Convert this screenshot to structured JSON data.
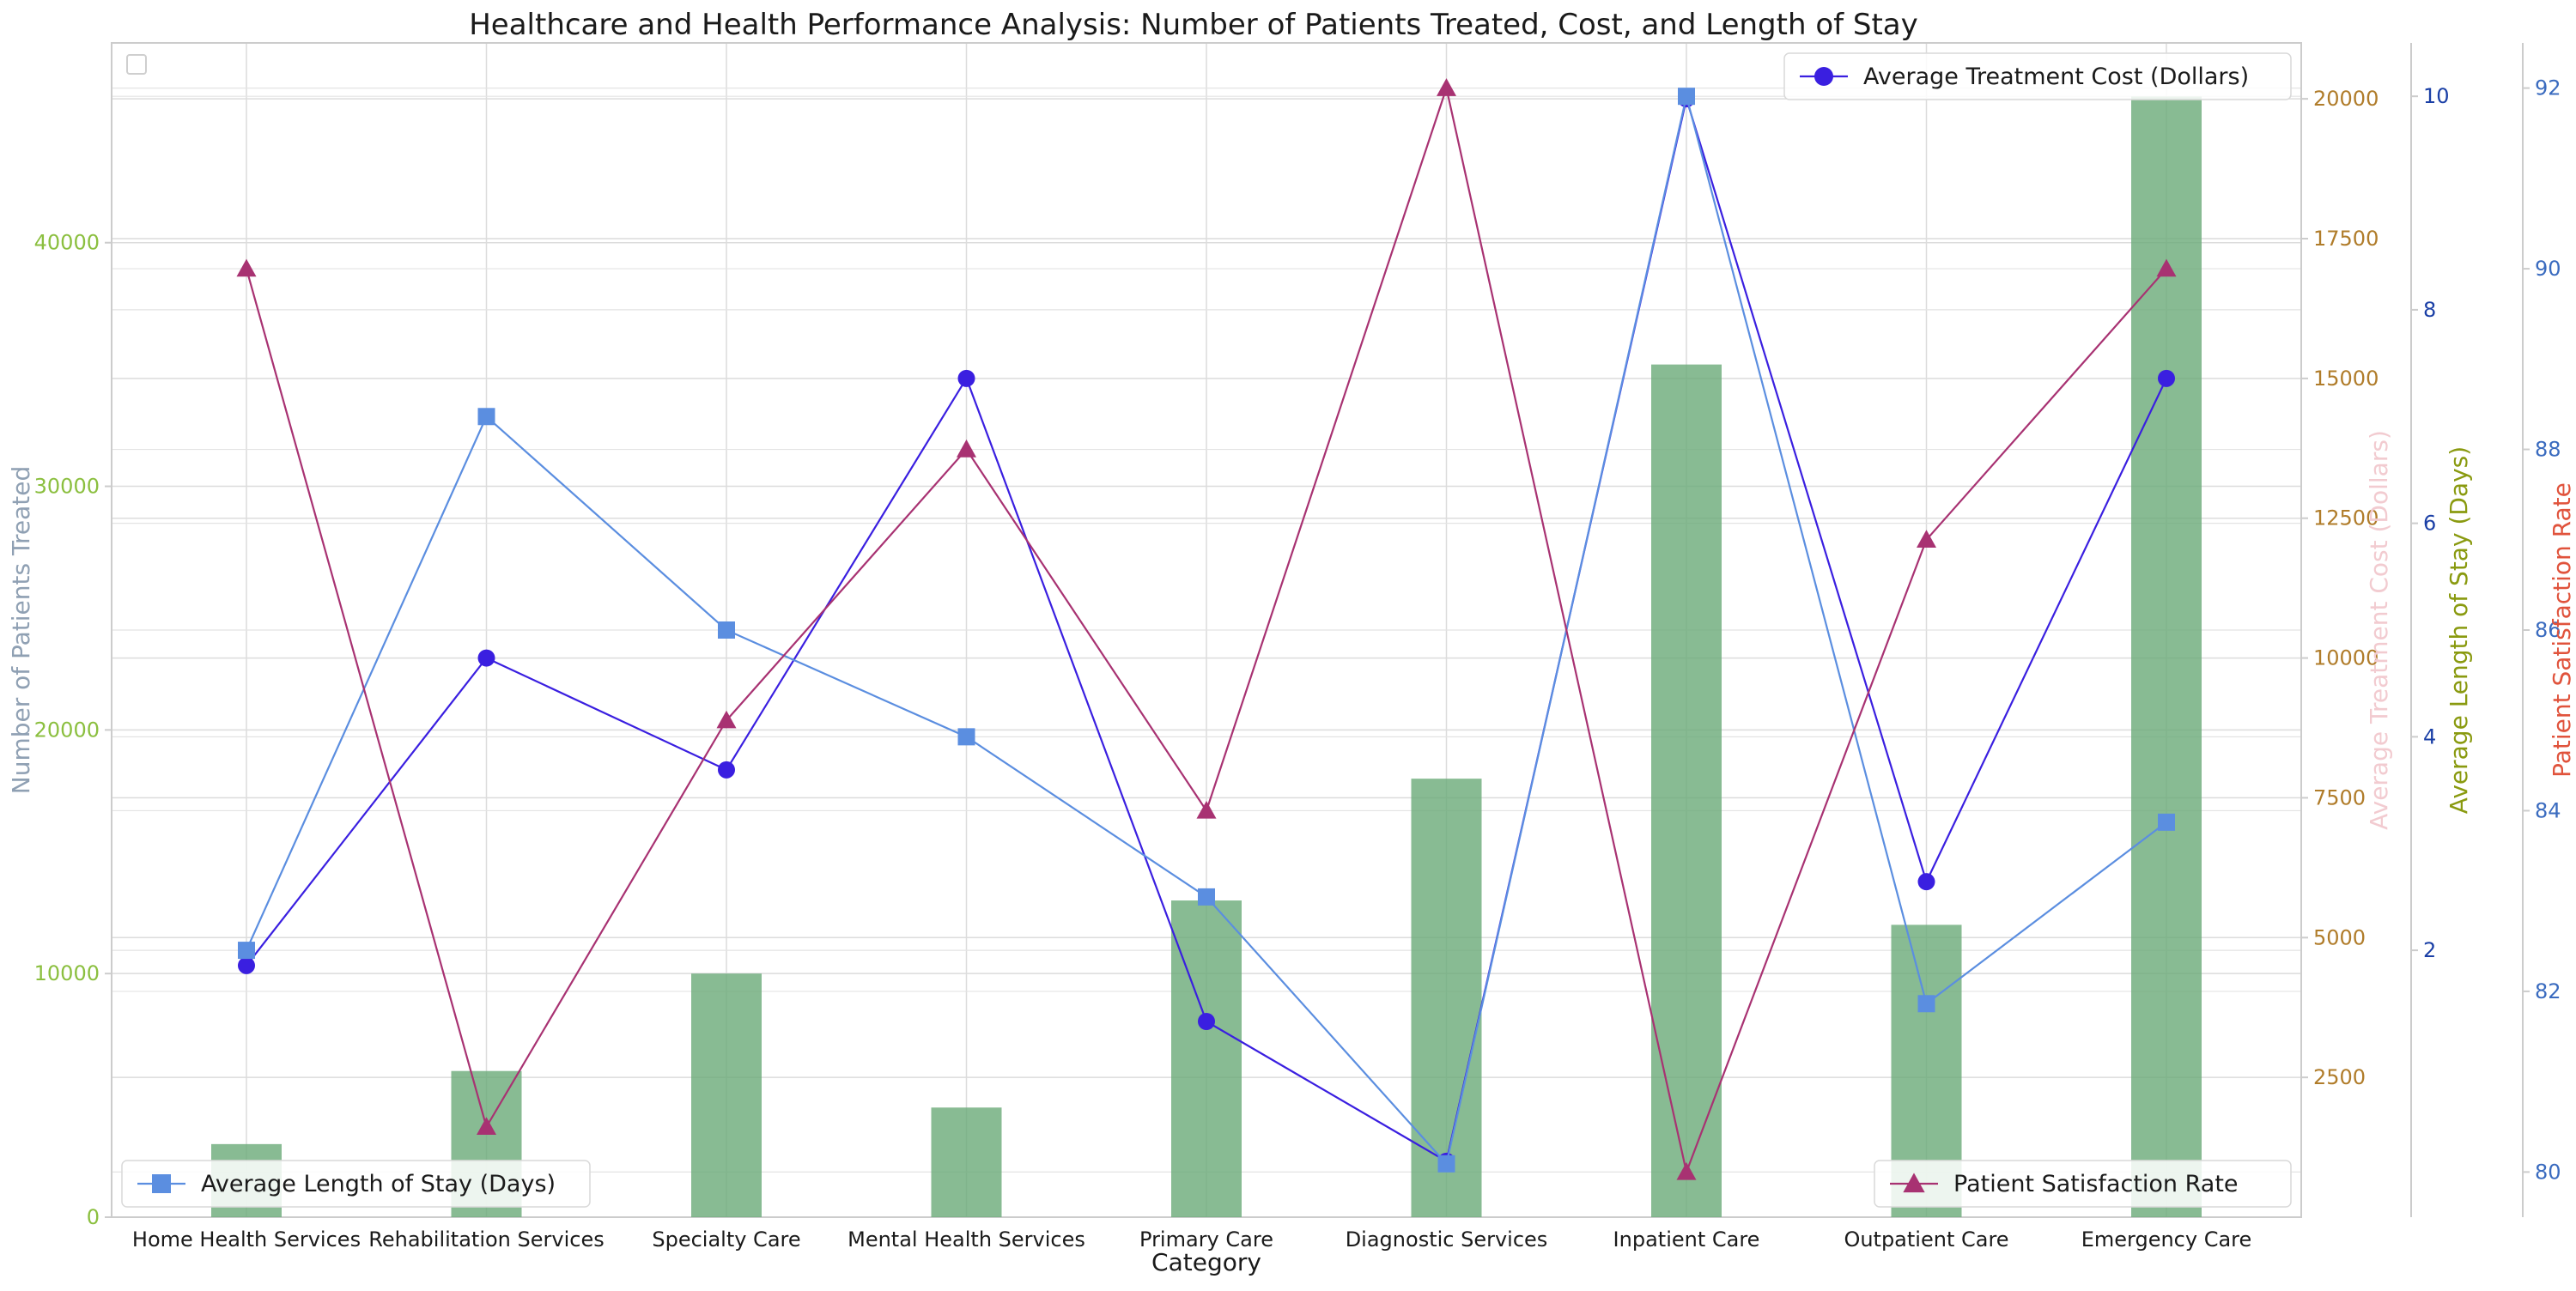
{
  "chart_data": {
    "type": "bar",
    "title": "Healthcare and Health Performance Analysis: Number of Patients Treated, Cost, and Length of Stay",
    "xlabel": "Category",
    "categories": [
      "Home Health Services",
      "Rehabilitation Services",
      "Specialty Care",
      "Mental Health Services",
      "Primary Care",
      "Diagnostic Services",
      "Inpatient Care",
      "Outpatient Care",
      "Emergency Care"
    ],
    "grid": true,
    "axes": {
      "patients": {
        "label": "Number of Patients Treated",
        "ylim": [
          0,
          48200
        ],
        "ticks": [
          0,
          10000,
          20000,
          30000,
          40000
        ],
        "label_color": "#8fa0b3",
        "tick_color": "#8bbf3f"
      },
      "cost": {
        "label": "Average Treatment Cost (Dollars)",
        "ylim": [
          0,
          21000
        ],
        "ticks": [
          2500,
          5000,
          7500,
          10000,
          12500,
          15000,
          17500,
          20000
        ],
        "label_color": "#f2cbd0",
        "tick_color": "#b07c2a"
      },
      "stay": {
        "label": "Average Length of Stay (Days)",
        "ylim": [
          -0.5,
          10.5
        ],
        "ticks": [
          2,
          4,
          6,
          8,
          10
        ],
        "label_color": "#8a9a10",
        "tick_color": "#1a3fa6"
      },
      "satisfaction": {
        "label": "Patient Satisfaction Rate",
        "ylim": [
          79.5,
          92.5
        ],
        "ticks": [
          80,
          82,
          84,
          86,
          88,
          90,
          92
        ],
        "label_color": "#e0533c",
        "tick_color": "#3a6bbf"
      }
    },
    "series": [
      {
        "name": "Number of Patients Treated",
        "type": "bar",
        "axis": "patients",
        "color": "#6aaa78",
        "values": [
          3000,
          6000,
          10000,
          4500,
          13000,
          18000,
          35000,
          12000,
          46000
        ]
      },
      {
        "name": "Average Treatment Cost (Dollars)",
        "type": "line",
        "axis": "cost",
        "color": "#3a1fe0",
        "marker": "circle",
        "values": [
          4500,
          10000,
          8000,
          15000,
          3500,
          1000,
          20000,
          6000,
          15000
        ]
      },
      {
        "name": "Average Length of Stay (Days)",
        "type": "line",
        "axis": "stay",
        "color": "#5b8ee0",
        "marker": "square",
        "values": [
          2,
          7,
          5,
          4,
          2.5,
          0,
          10,
          1.5,
          3.2
        ]
      },
      {
        "name": "Patient Satisfaction Rate",
        "type": "line",
        "axis": "satisfaction",
        "color": "#a83272",
        "marker": "triangle",
        "values": [
          90,
          80.5,
          85,
          88,
          84,
          92,
          80,
          87,
          90
        ]
      }
    ],
    "legends": [
      {
        "series": "Average Treatment Cost (Dollars)",
        "placement": "top-right"
      },
      {
        "series": "Average Length of Stay (Days)",
        "placement": "bottom-left"
      },
      {
        "series": "Patient Satisfaction Rate",
        "placement": "bottom-right"
      },
      {
        "series": "",
        "placement": "top-left"
      }
    ]
  }
}
